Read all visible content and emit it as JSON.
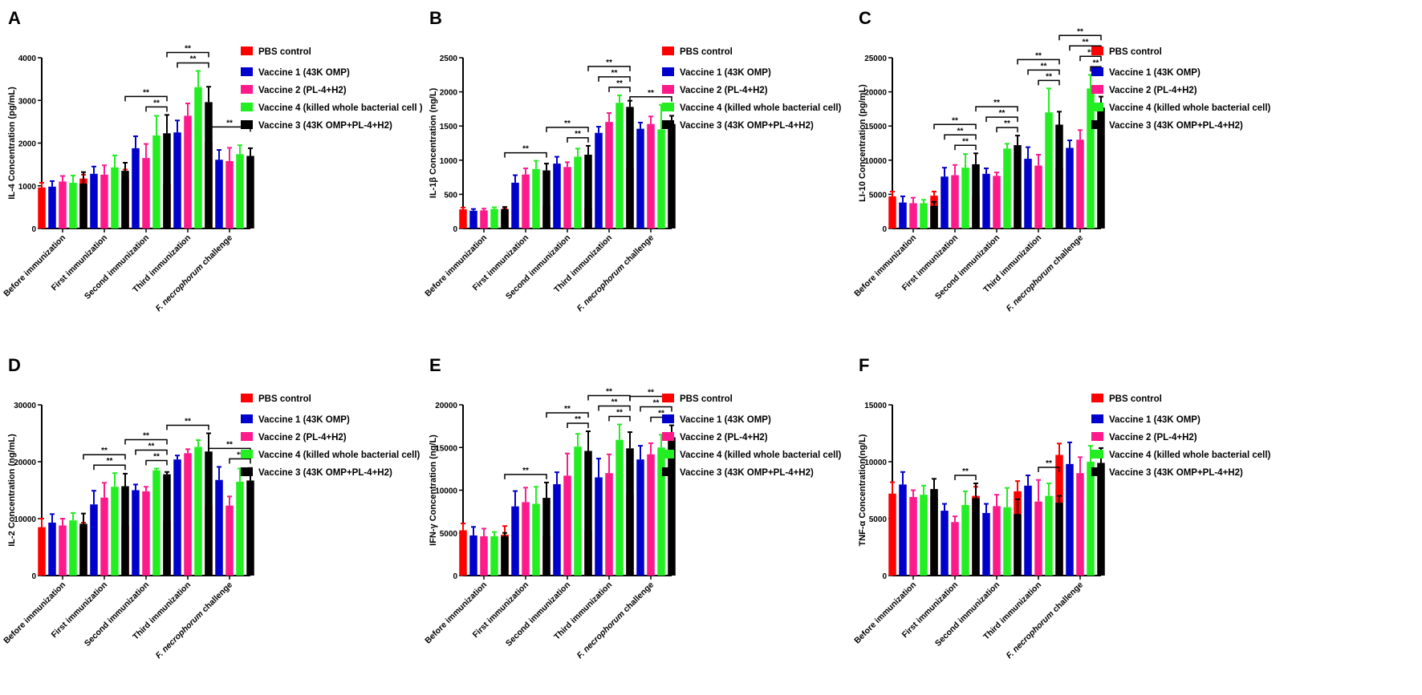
{
  "series_colors": [
    "#ff0000",
    "#0000cc",
    "#ff1a8c",
    "#22ee22",
    "#000000"
  ],
  "chart_data": [
    {
      "type": "bar",
      "panel_label": "A",
      "ylabel": "IL-4 Concentration (pg/mL)",
      "ylim": [
        0,
        4000
      ],
      "yticks": [
        0,
        1000,
        2000,
        3000,
        4000
      ],
      "categories": [
        "Before immunization",
        "First immunization",
        "Second immunization",
        "Third immunization",
        "F. necrophorum challenge"
      ],
      "series": [
        {
          "name": "PBS control",
          "values": [
            960,
            1170,
            1160,
            1050,
            2020
          ],
          "errors": [
            110,
            90,
            220,
            120,
            170
          ]
        },
        {
          "name": "Vaccine 1 (43K OMP)",
          "values": [
            980,
            1280,
            1880,
            2250,
            1610
          ],
          "errors": [
            130,
            170,
            280,
            280,
            230
          ]
        },
        {
          "name": "Vaccine 2 (PL-4+H2)",
          "values": [
            1100,
            1260,
            1650,
            2640,
            1580
          ],
          "errors": [
            130,
            220,
            330,
            290,
            310
          ]
        },
        {
          "name": "Vaccine 4 (killed whole bacterial cell )",
          "values": [
            1070,
            1430,
            2180,
            3310,
            1740
          ],
          "errors": [
            170,
            280,
            460,
            380,
            210
          ]
        },
        {
          "name": "Vaccine 3 (43K OMP+PL-4+H2)",
          "values": [
            1050,
            1350,
            2230,
            2960,
            1700
          ],
          "errors": [
            270,
            190,
            430,
            360,
            180
          ]
        }
      ],
      "significance": [
        {
          "category": 2,
          "from": 0,
          "to": 4,
          "label": "**"
        },
        {
          "category": 2,
          "from": 2,
          "to": 4,
          "label": "**"
        },
        {
          "category": 3,
          "from": 0,
          "to": 4,
          "label": "**"
        },
        {
          "category": 3,
          "from": 1,
          "to": 4,
          "label": "**"
        },
        {
          "category": 4,
          "from": 0,
          "to": 4,
          "label": "**"
        }
      ]
    },
    {
      "type": "bar",
      "panel_label": "B",
      "ylabel": "IL-1β Concentration (ng/L)",
      "ylim": [
        0,
        2500
      ],
      "yticks": [
        0,
        500,
        1000,
        1500,
        2000,
        2500
      ],
      "categories": [
        "Before immunization",
        "First immunization",
        "Second immunization",
        "Third immunization",
        "F. necrophorum challenge"
      ],
      "series": [
        {
          "name": "PBS control",
          "values": [
            280,
            260,
            340,
            300,
            890
          ],
          "errors": [
            25,
            30,
            10,
            60,
            40
          ]
        },
        {
          "name": "Vaccine 1 (43K OMP)",
          "values": [
            260,
            670,
            950,
            1400,
            1460
          ],
          "errors": [
            25,
            110,
            100,
            90,
            90
          ]
        },
        {
          "name": "Vaccine 2 (PL-4+H2)",
          "values": [
            265,
            790,
            900,
            1560,
            1530
          ],
          "errors": [
            25,
            90,
            70,
            130,
            110
          ]
        },
        {
          "name": "Vaccine 4 (killed whole bacterial cell)",
          "values": [
            285,
            870,
            1050,
            1840,
            1450
          ],
          "errors": [
            25,
            120,
            120,
            110,
            360
          ]
        },
        {
          "name": "Vaccine 3 (43K OMP+PL-4+H2)",
          "values": [
            285,
            850,
            1080,
            1780,
            1530
          ],
          "errors": [
            30,
            100,
            130,
            90,
            120
          ]
        }
      ],
      "significance": [
        {
          "category": 1,
          "from": 0,
          "to": 4,
          "label": "**"
        },
        {
          "category": 2,
          "from": 0,
          "to": 4,
          "label": "**"
        },
        {
          "category": 2,
          "from": 2,
          "to": 4,
          "label": "**"
        },
        {
          "category": 3,
          "from": 0,
          "to": 4,
          "label": "**"
        },
        {
          "category": 3,
          "from": 1,
          "to": 4,
          "label": "**"
        },
        {
          "category": 3,
          "from": 2,
          "to": 4,
          "label": "**"
        },
        {
          "category": 4,
          "from": 0,
          "to": 4,
          "label": "**"
        }
      ]
    },
    {
      "type": "bar",
      "panel_label": "C",
      "ylabel": "LI-10 Concentration (pg/mL)",
      "ylim": [
        0,
        25000
      ],
      "yticks": [
        0,
        5000,
        10000,
        15000,
        20000,
        25000
      ],
      "categories": [
        "Before immunization",
        "First immunization",
        "Second immunization",
        "Third immunization",
        "F. necrophorum challenge"
      ],
      "series": [
        {
          "name": "PBS control",
          "values": [
            4700,
            4800,
            4700,
            4200,
            8800
          ],
          "errors": [
            700,
            600,
            50,
            600,
            1400
          ]
        },
        {
          "name": "Vaccine 1 (43K OMP)",
          "values": [
            3800,
            7600,
            8000,
            10200,
            11800
          ],
          "errors": [
            900,
            1300,
            800,
            1700,
            1100
          ]
        },
        {
          "name": "Vaccine 2 (PL-4+H2)",
          "values": [
            3700,
            7800,
            7700,
            9200,
            13000
          ],
          "errors": [
            800,
            1500,
            500,
            1600,
            1400
          ]
        },
        {
          "name": "Vaccine 4 (killed whole bacterial cell)",
          "values": [
            3700,
            8900,
            11700,
            17000,
            20500
          ],
          "errors": [
            500,
            2000,
            700,
            3500,
            2000
          ]
        },
        {
          "name": "Vaccine 3 (43K OMP+PL-4+H2)",
          "values": [
            3300,
            9400,
            12200,
            15200,
            17700
          ],
          "errors": [
            600,
            1600,
            1400,
            1900,
            1600
          ]
        }
      ],
      "significance": [
        {
          "category": 1,
          "from": 0,
          "to": 4,
          "label": "**"
        },
        {
          "category": 1,
          "from": 1,
          "to": 4,
          "label": "**"
        },
        {
          "category": 1,
          "from": 2,
          "to": 4,
          "label": "**"
        },
        {
          "category": 2,
          "from": 0,
          "to": 4,
          "label": "**"
        },
        {
          "category": 2,
          "from": 1,
          "to": 4,
          "label": "**"
        },
        {
          "category": 2,
          "from": 2,
          "to": 4,
          "label": "**"
        },
        {
          "category": 3,
          "from": 0,
          "to": 4,
          "label": "**"
        },
        {
          "category": 3,
          "from": 1,
          "to": 4,
          "label": "**"
        },
        {
          "category": 3,
          "from": 2,
          "to": 4,
          "label": "**"
        },
        {
          "category": 4,
          "from": 0,
          "to": 4,
          "label": "**"
        },
        {
          "category": 4,
          "from": 1,
          "to": 4,
          "label": "**"
        },
        {
          "category": 4,
          "from": 2,
          "to": 4,
          "label": "**"
        },
        {
          "category": 4,
          "from": 3,
          "to": 4,
          "label": "**"
        }
      ]
    },
    {
      "type": "bar",
      "panel_label": "D",
      "ylabel": "IL-2 Concentration (ng/mL)",
      "ylim": [
        0,
        30000
      ],
      "yticks": [
        0,
        10000,
        20000,
        30000
      ],
      "categories": [
        "Before immunization",
        "First immunization",
        "Second immunization",
        "Third immunization",
        "F. necrophorum challenge"
      ],
      "series": [
        {
          "name": "PBS control",
          "values": [
            8500,
            8700,
            8700,
            9600,
            12300
          ],
          "errors": [
            1500,
            600,
            1200,
            900,
            400
          ]
        },
        {
          "name": "Vaccine 1 (43K OMP)",
          "values": [
            9300,
            12500,
            15000,
            20400,
            16800
          ],
          "errors": [
            1500,
            2400,
            1000,
            700,
            2300
          ]
        },
        {
          "name": "Vaccine 2 (PL-4+H2)",
          "values": [
            8800,
            13700,
            14800,
            21500,
            12300
          ],
          "errors": [
            1200,
            2600,
            800,
            700,
            1600
          ]
        },
        {
          "name": "Vaccine 4 (killed whole bacterial cell)",
          "values": [
            9700,
            15600,
            18500,
            22600,
            16500
          ],
          "errors": [
            1300,
            2400,
            300,
            1200,
            2300
          ]
        },
        {
          "name": "Vaccine 3 (43K OMP+PL-4+H2)",
          "values": [
            9100,
            15700,
            17800,
            21800,
            16700
          ],
          "errors": [
            1800,
            2200,
            400,
            3200,
            2200
          ]
        }
      ],
      "significance": [
        {
          "category": 1,
          "from": 0,
          "to": 4,
          "label": "**"
        },
        {
          "category": 1,
          "from": 1,
          "to": 4,
          "label": "**"
        },
        {
          "category": 2,
          "from": 0,
          "to": 4,
          "label": "**"
        },
        {
          "category": 2,
          "from": 1,
          "to": 4,
          "label": "**"
        },
        {
          "category": 2,
          "from": 2,
          "to": 4,
          "label": "**"
        },
        {
          "category": 3,
          "from": 0,
          "to": 4,
          "label": "**"
        },
        {
          "category": 4,
          "from": 0,
          "to": 4,
          "label": "**"
        },
        {
          "category": 4,
          "from": 2,
          "to": 4,
          "label": "**"
        }
      ]
    },
    {
      "type": "bar",
      "panel_label": "E",
      "ylabel": "IFN-γ Concentration (ng/L)",
      "ylim": [
        0,
        20000
      ],
      "yticks": [
        0,
        5000,
        10000,
        15000,
        20000
      ],
      "categories": [
        "Before immunization",
        "First immunization",
        "Second immunization",
        "Third immunization",
        "F. necrophorum challenge"
      ],
      "series": [
        {
          "name": "PBS control",
          "values": [
            5300,
            4800,
            4600,
            5200,
            9600
          ],
          "errors": [
            800,
            1000,
            500,
            300,
            900
          ]
        },
        {
          "name": "Vaccine 1 (43K OMP)",
          "values": [
            4700,
            8100,
            10700,
            11500,
            13600
          ],
          "errors": [
            1000,
            1800,
            1400,
            2200,
            1600
          ]
        },
        {
          "name": "Vaccine 2 (PL-4+H2)",
          "values": [
            4600,
            8600,
            11700,
            12000,
            14200
          ],
          "errors": [
            900,
            1700,
            2600,
            2200,
            1300
          ]
        },
        {
          "name": "Vaccine 4 (killed whole bacterial cell)",
          "values": [
            4600,
            8400,
            15100,
            15900,
            15000
          ],
          "errors": [
            500,
            2000,
            1500,
            1800,
            1500
          ]
        },
        {
          "name": "Vaccine 3 (43K OMP+PL-4+H2)",
          "values": [
            4600,
            9100,
            14600,
            14900,
            16200
          ],
          "errors": [
            400,
            1800,
            2300,
            1900,
            1400
          ]
        }
      ],
      "significance": [
        {
          "category": 1,
          "from": 0,
          "to": 4,
          "label": "**"
        },
        {
          "category": 2,
          "from": 0,
          "to": 4,
          "label": "**"
        },
        {
          "category": 2,
          "from": 2,
          "to": 4,
          "label": "**"
        },
        {
          "category": 3,
          "from": 0,
          "to": 4,
          "label": "**"
        },
        {
          "category": 3,
          "from": 1,
          "to": 4,
          "label": "**"
        },
        {
          "category": 3,
          "from": 2,
          "to": 4,
          "label": "**"
        },
        {
          "category": 4,
          "from": 0,
          "to": 4,
          "label": "**"
        },
        {
          "category": 4,
          "from": 1,
          "to": 4,
          "label": "**"
        },
        {
          "category": 4,
          "from": 2,
          "to": 4,
          "label": "**"
        }
      ]
    },
    {
      "type": "bar",
      "panel_label": "F",
      "ylabel": "TNF-α Concentration(ng/L)",
      "ylim": [
        0,
        15000
      ],
      "yticks": [
        0,
        5000,
        10000,
        15000
      ],
      "categories": [
        "Before immunization",
        "First immunization",
        "Second immunization",
        "Third immunization",
        "F. necrophorum challenge"
      ],
      "series": [
        {
          "name": "PBS control",
          "values": [
            7200,
            6900,
            7000,
            7400,
            10600
          ],
          "errors": [
            1000,
            500,
            800,
            900,
            1000
          ]
        },
        {
          "name": "Vaccine 1 (43K OMP)",
          "values": [
            8000,
            5700,
            5500,
            7900,
            9800
          ],
          "errors": [
            1100,
            600,
            800,
            900,
            1900
          ]
        },
        {
          "name": "Vaccine 2 (PL-4+H2)",
          "values": [
            6900,
            4700,
            6100,
            6500,
            9000
          ],
          "errors": [
            600,
            500,
            1000,
            1900,
            1400
          ]
        },
        {
          "name": "Vaccine 4 (killed whole bacterial cell)",
          "values": [
            7100,
            6200,
            6000,
            7000,
            10000
          ],
          "errors": [
            800,
            1200,
            1700,
            1100,
            1400
          ]
        },
        {
          "name": "Vaccine 3 (43K OMP+PL-4+H2)",
          "values": [
            7600,
            6800,
            5400,
            6400,
            9900
          ],
          "errors": [
            900,
            1300,
            1300,
            600,
            1300
          ]
        }
      ],
      "significance": [
        {
          "category": 1,
          "from": 2,
          "to": 4,
          "label": "**"
        },
        {
          "category": 3,
          "from": 2,
          "to": 4,
          "label": "**"
        }
      ]
    }
  ]
}
